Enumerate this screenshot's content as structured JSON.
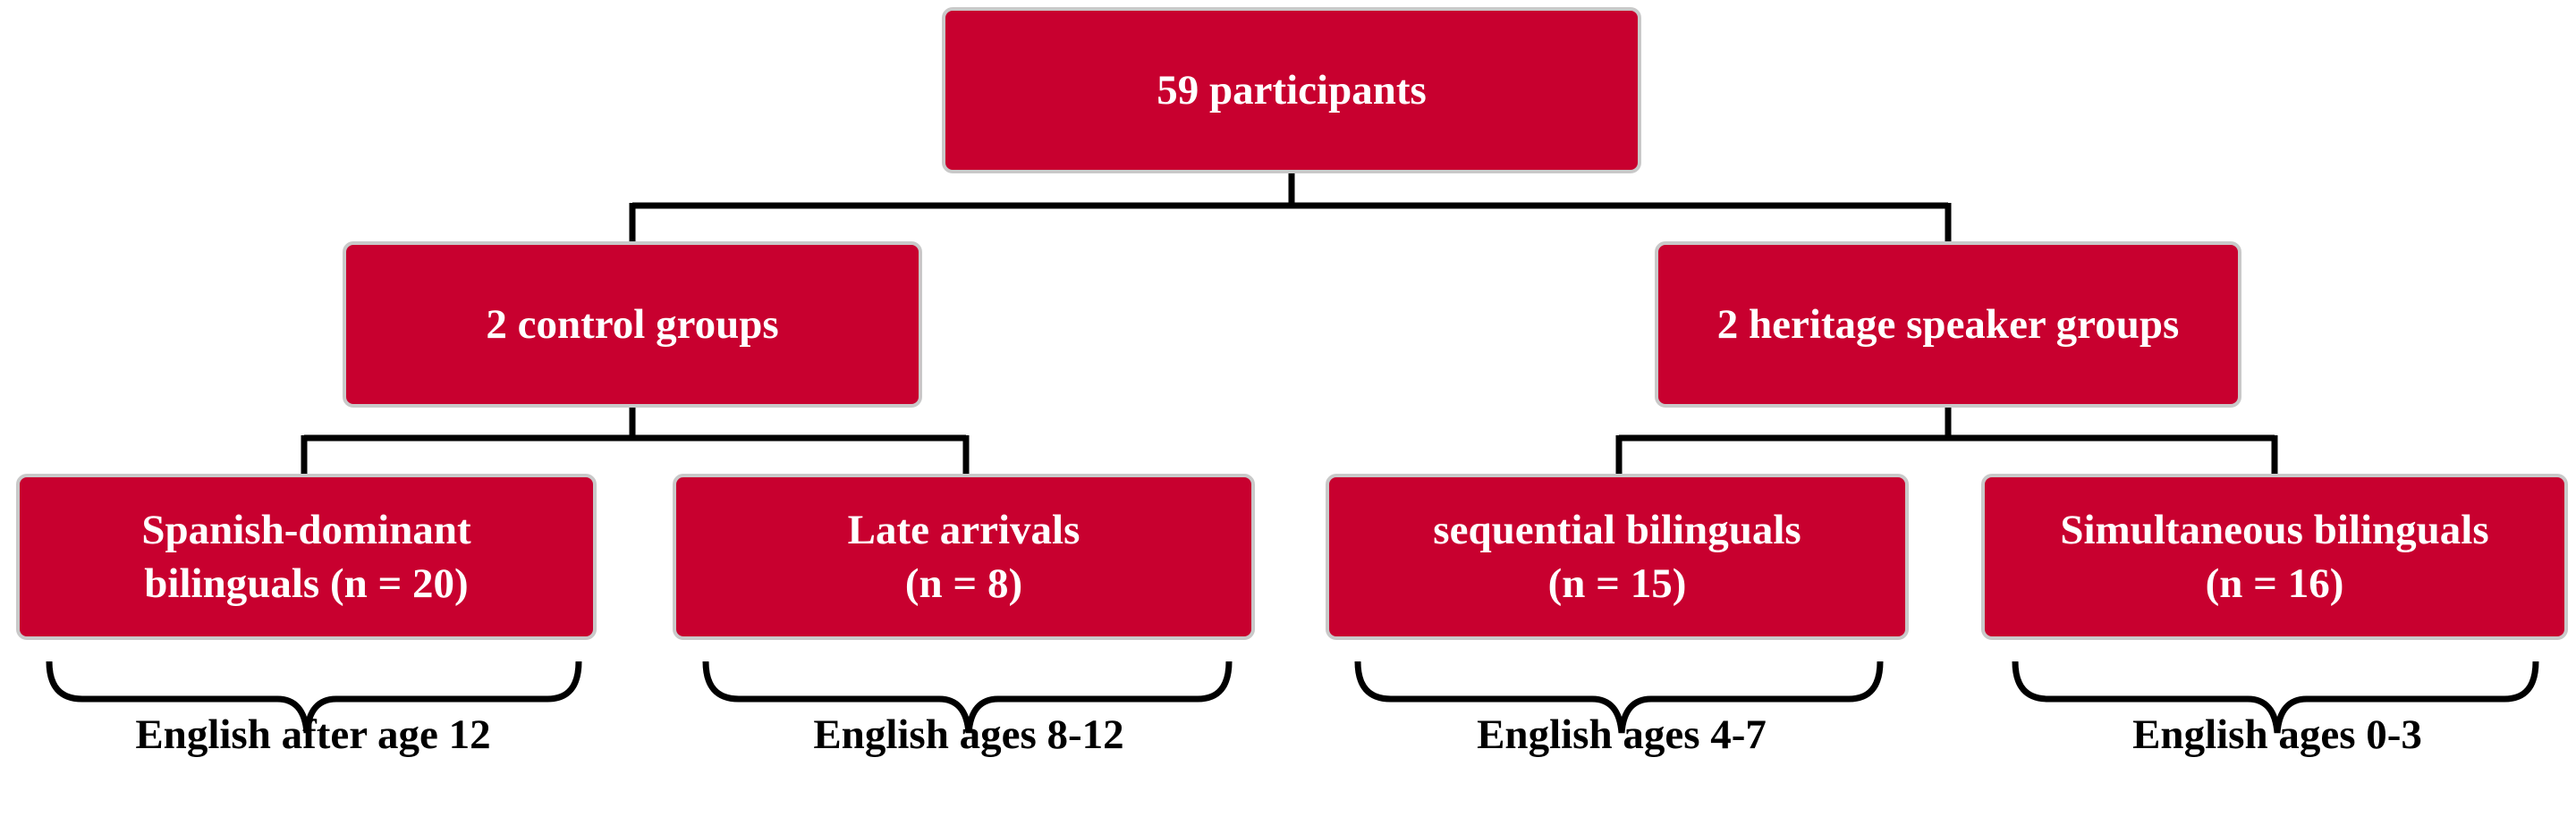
{
  "root": {
    "label": "59 participants"
  },
  "groups": [
    {
      "label": "2 control groups",
      "subgroups": [
        {
          "line1": "Spanish-dominant",
          "line2": "bilinguals (n = 20)",
          "age": "English after age 12"
        },
        {
          "line1": "Late arrivals",
          "line2": "(n = 8)",
          "age": "English ages 8-12"
        }
      ]
    },
    {
      "label": "2 heritage speaker groups",
      "subgroups": [
        {
          "line1": "sequential bilinguals",
          "line2": "(n = 15)",
          "age": "English ages 4-7"
        },
        {
          "line1": "Simultaneous bilinguals",
          "line2": "(n = 16)",
          "age": "English ages 0-3"
        }
      ]
    }
  ],
  "colors": {
    "box_fill": "#c8002f",
    "box_border": "#c9c9c9",
    "box_text": "#ffffff",
    "connector": "#000000"
  }
}
